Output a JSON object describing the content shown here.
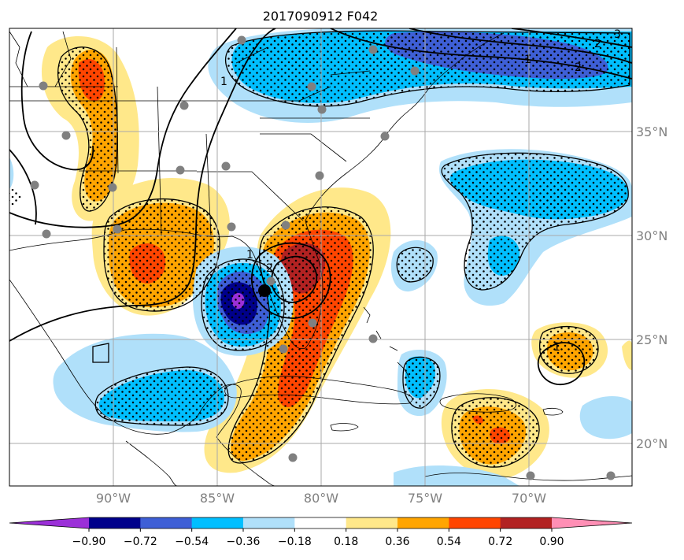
{
  "title": "2017090912 F042",
  "colors": {
    "neg_090": "#9b30d8",
    "neg_072": "#00008b",
    "neg_054": "#3e5fd6",
    "neg_036": "#00bfff",
    "neg_018": "#b0e0fa",
    "neutral": "#ffffff",
    "pos_018": "#ffe88a",
    "pos_036": "#ffa500",
    "pos_054": "#ff4500",
    "pos_072": "#b22222",
    "pos_090": "#ff8fb5",
    "coast": "#000000",
    "grid": "#a9a9a9",
    "station": "#808080"
  },
  "lon_labels": [
    "90°W",
    "85°W",
    "80°W",
    "75°W",
    "70°W"
  ],
  "lat_labels": [
    "35°N",
    "30°N",
    "25°N",
    "20°N"
  ],
  "colorbar": {
    "ticks": [
      "−0.90",
      "−0.72",
      "−0.54",
      "−0.36",
      "−0.18",
      "0.18",
      "0.36",
      "0.54",
      "0.72",
      "0.90"
    ],
    "extend": "both"
  },
  "contour_labels": [
    "1",
    "1",
    "2",
    "2",
    "3",
    "1",
    "2",
    "1"
  ],
  "storm_center_marker": "black-dot"
}
